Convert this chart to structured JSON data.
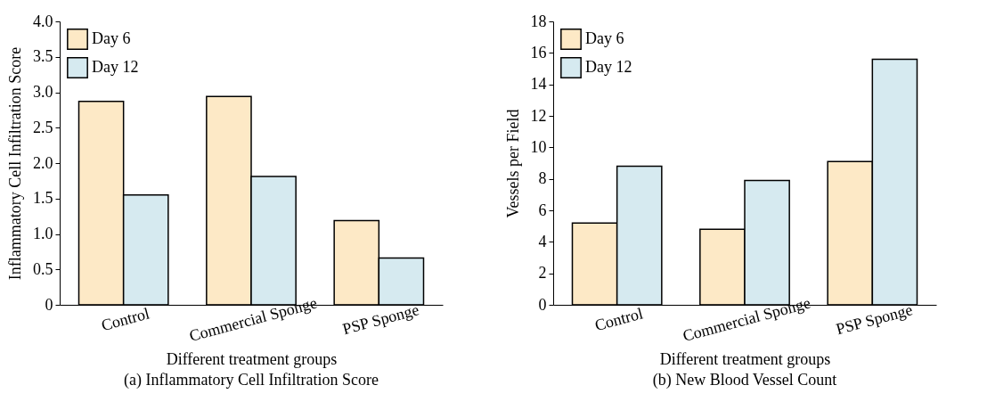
{
  "chart_data": [
    {
      "type": "bar",
      "title": "(a) Inflammatory Cell Infiltration Score",
      "xlabel": "Different treatment groups",
      "ylabel": "Inflammatory Cell Infiltration Score",
      "categories": [
        "Control",
        "Commercial Sponge",
        "PSP Sponge"
      ],
      "series": [
        {
          "name": "Day 6",
          "color": "#fde9c6",
          "values": [
            2.87,
            2.94,
            1.19
          ]
        },
        {
          "name": "Day 12",
          "color": "#d6eaf0",
          "values": [
            1.55,
            1.81,
            0.66
          ]
        }
      ],
      "ylim": [
        0,
        4
      ],
      "yticks": [
        0,
        0.5,
        {
          "value": 1,
          "label": "1.0"
        },
        1.5,
        {
          "value": 2,
          "label": "2.0"
        },
        2.5,
        {
          "value": 3,
          "label": "3.0"
        },
        3.5,
        {
          "value": 4,
          "label": "4.0"
        }
      ],
      "legend": "top left",
      "grid": false
    },
    {
      "type": "bar",
      "title": "(b) New Blood Vessel Count",
      "xlabel": "Different treatment groups",
      "ylabel": "Vessels per Field",
      "categories": [
        "Control",
        "Commercial Sponge",
        "PSP Sponge"
      ],
      "series": [
        {
          "name": "Day 6",
          "color": "#fde9c6",
          "values": [
            5.2,
            4.8,
            9.1
          ]
        },
        {
          "name": "Day 12",
          "color": "#d6eaf0",
          "values": [
            8.8,
            7.9,
            15.6
          ]
        }
      ],
      "ylim": [
        0,
        18
      ],
      "yticks": [
        0,
        2,
        4,
        6,
        8,
        10,
        12,
        14,
        16,
        18
      ],
      "legend": "top left",
      "grid": false
    }
  ]
}
